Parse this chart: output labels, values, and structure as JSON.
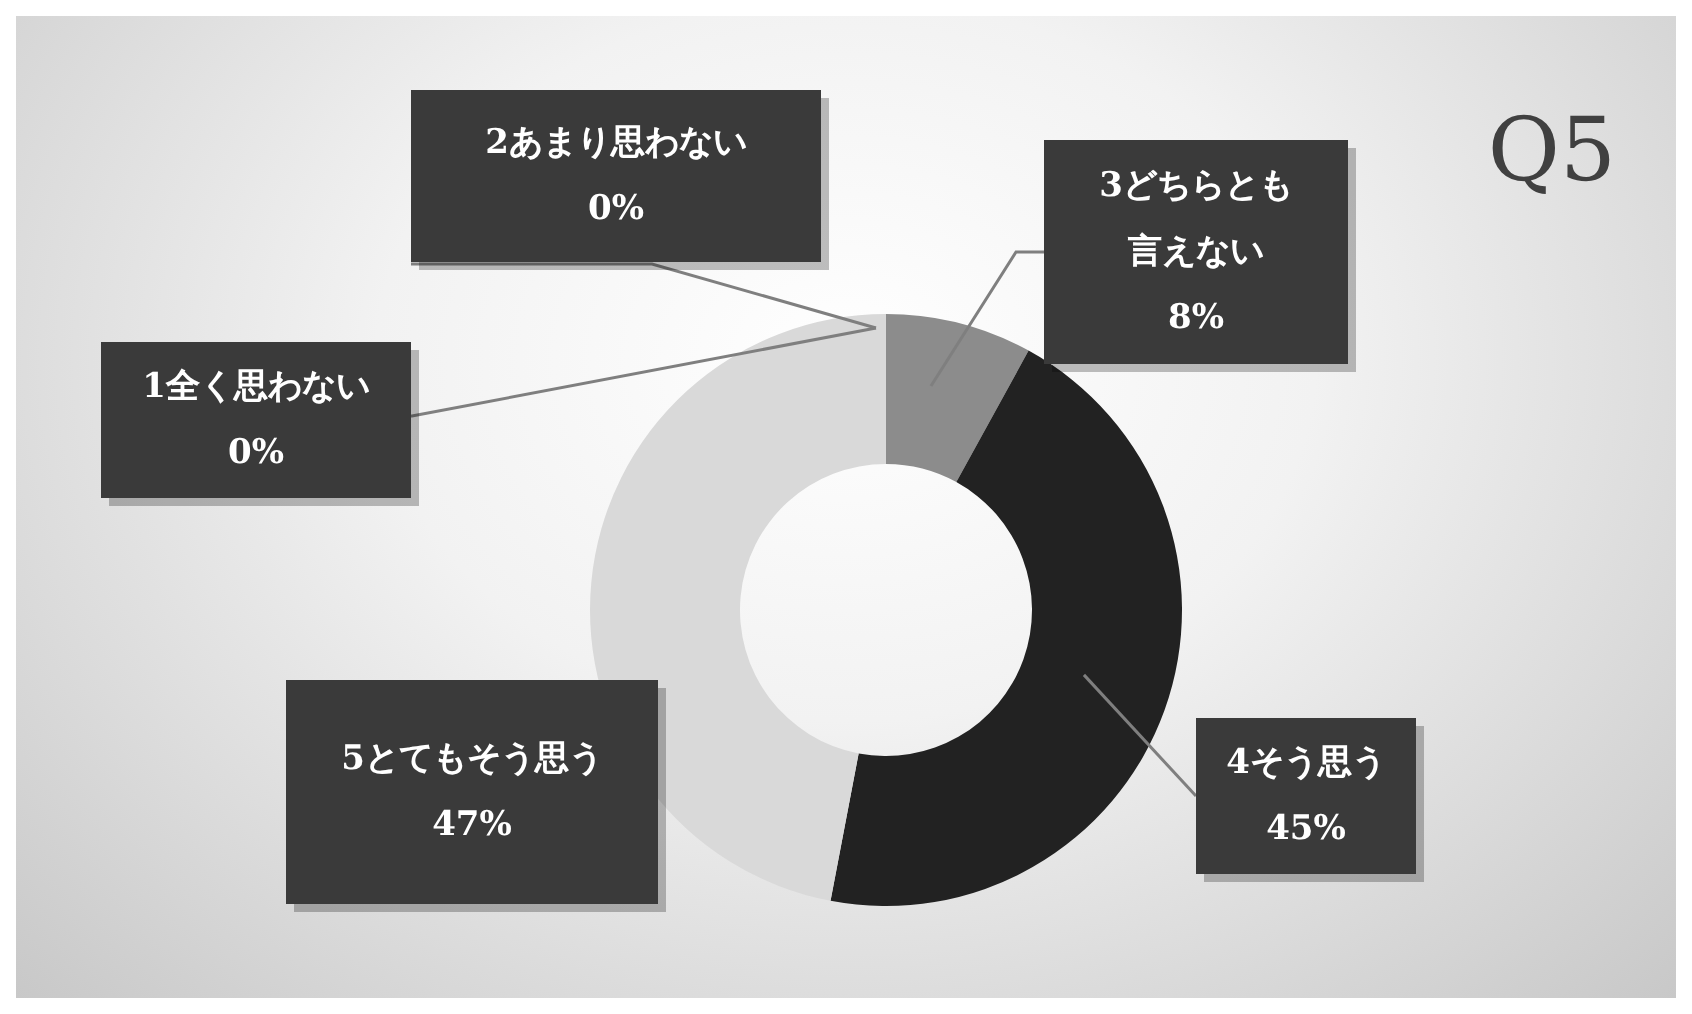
{
  "chart_data": {
    "type": "donut",
    "title": "Q5",
    "categories": [
      "1全く思わない",
      "2あまり思わない",
      "3どちらとも言えない",
      "4そう思う",
      "5とてもそう思う"
    ],
    "values": [
      0,
      0,
      8,
      45,
      47
    ],
    "colors": [
      "#bfbfbf",
      "#a6a6a6",
      "#8c8c8c",
      "#222222",
      "#d9d9d9"
    ],
    "value_labels": [
      "0%",
      "0%",
      "8%",
      "45%",
      "47%"
    ]
  }
}
